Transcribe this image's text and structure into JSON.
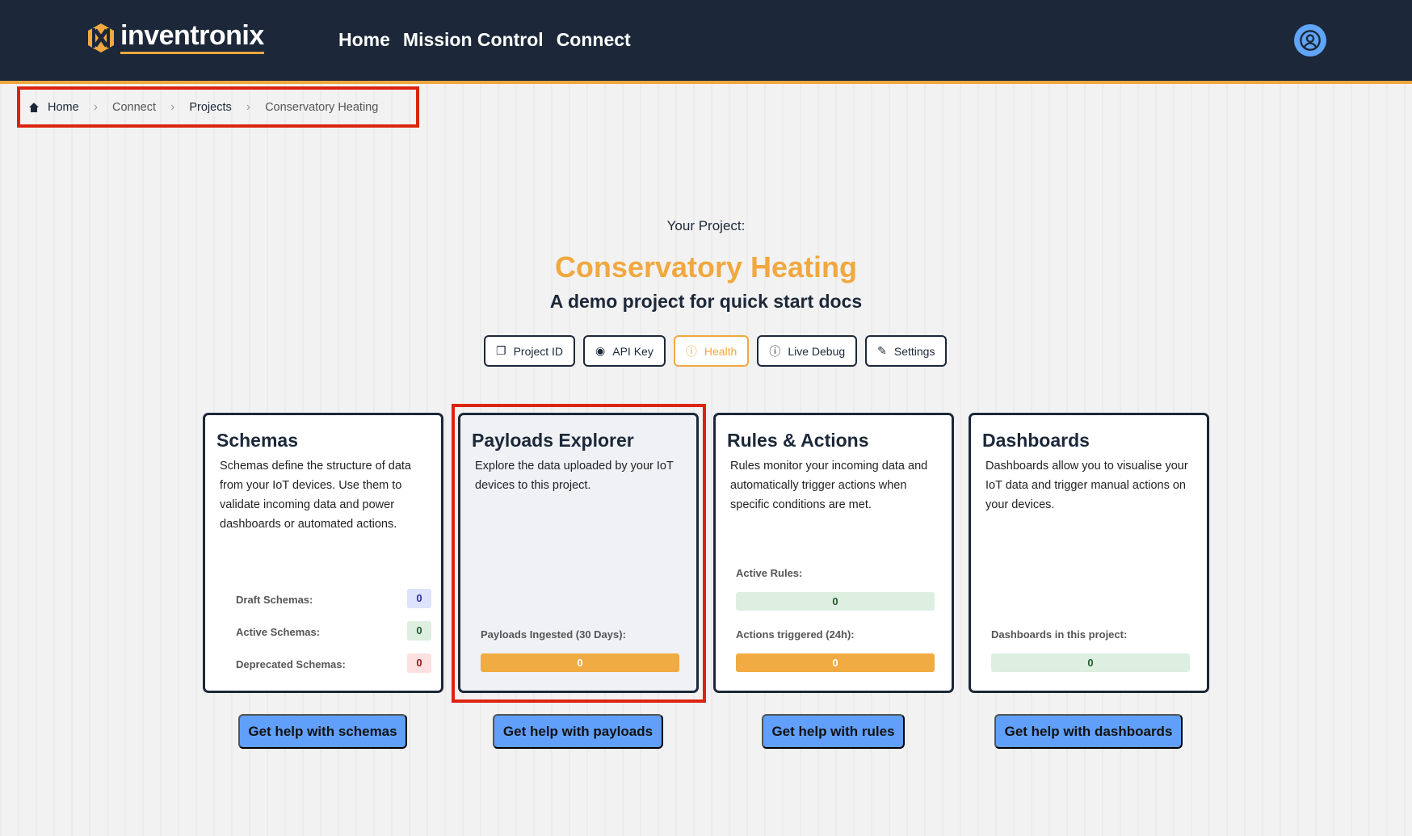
{
  "header": {
    "logo_text": "inventronix",
    "nav": [
      "Home",
      "Mission Control",
      "Connect"
    ]
  },
  "breadcrumb": [
    "Home",
    "Connect",
    "Projects",
    "Conservatory Heating"
  ],
  "project": {
    "label": "Your Project:",
    "name": "Conservatory Heating",
    "description": "A demo project for quick start docs"
  },
  "actions": [
    {
      "label": "Project ID",
      "icon": "copy-icon"
    },
    {
      "label": "API Key",
      "icon": "eye-icon"
    },
    {
      "label": "Health",
      "icon": "alert-circle-icon"
    },
    {
      "label": "Live Debug",
      "icon": "alert-circle-icon"
    },
    {
      "label": "Settings",
      "icon": "edit-icon"
    }
  ],
  "cards": {
    "schemas": {
      "title": "Schemas",
      "desc": "Schemas define the structure of data from your IoT devices. Use them to validate incoming data and power dashboards or automated actions.",
      "stats": [
        {
          "label": "Draft Schemas:",
          "value": "0"
        },
        {
          "label": "Active Schemas:",
          "value": "0"
        },
        {
          "label": "Deprecated Schemas:",
          "value": "0"
        }
      ],
      "help": "Get help with schemas"
    },
    "payloads": {
      "title": "Payloads Explorer",
      "desc": "Explore the data uploaded by your IoT devices to this project.",
      "stat_label": "Payloads Ingested (30 Days):",
      "stat_value": "0",
      "help": "Get help with payloads"
    },
    "rules": {
      "title": "Rules & Actions",
      "desc": "Rules monitor your incoming data and automatically trigger actions when specific conditions are met.",
      "active_label": "Active Rules:",
      "active_value": "0",
      "triggered_label": "Actions triggered (24h):",
      "triggered_value": "0",
      "help": "Get help with rules"
    },
    "dashboards": {
      "title": "Dashboards",
      "desc": "Dashboards allow you to visualise your IoT data and trigger manual actions on your devices.",
      "stat_label": "Dashboards in this project:",
      "stat_value": "0",
      "help": "Get help with dashboards"
    }
  },
  "colors": {
    "accent": "#f0a83f",
    "header": "#1c2839",
    "help_button": "#60a0fa",
    "selection": "#dc2410"
  }
}
